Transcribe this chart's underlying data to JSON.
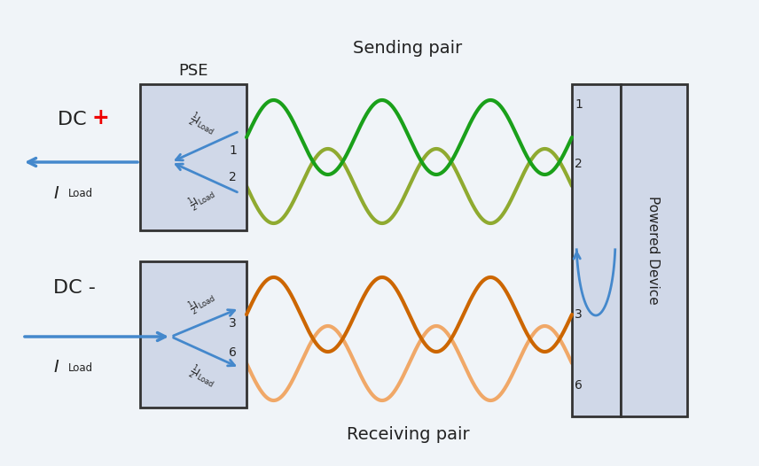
{
  "bg_color": "#f0f4f8",
  "title": "Sending pair",
  "title2": "Receiving pair",
  "pse_label": "PSE",
  "pd_label": "Powered Device",
  "green_dark": "#1aa01a",
  "green_light": "#8faa30",
  "orange_dark": "#cc6600",
  "orange_light": "#f0a868",
  "blue_arrow": "#4488cc",
  "red_plus": "#ee0000",
  "box_fill": "#d0d8e8",
  "box_edge": "#333333",
  "text_color": "#222222"
}
